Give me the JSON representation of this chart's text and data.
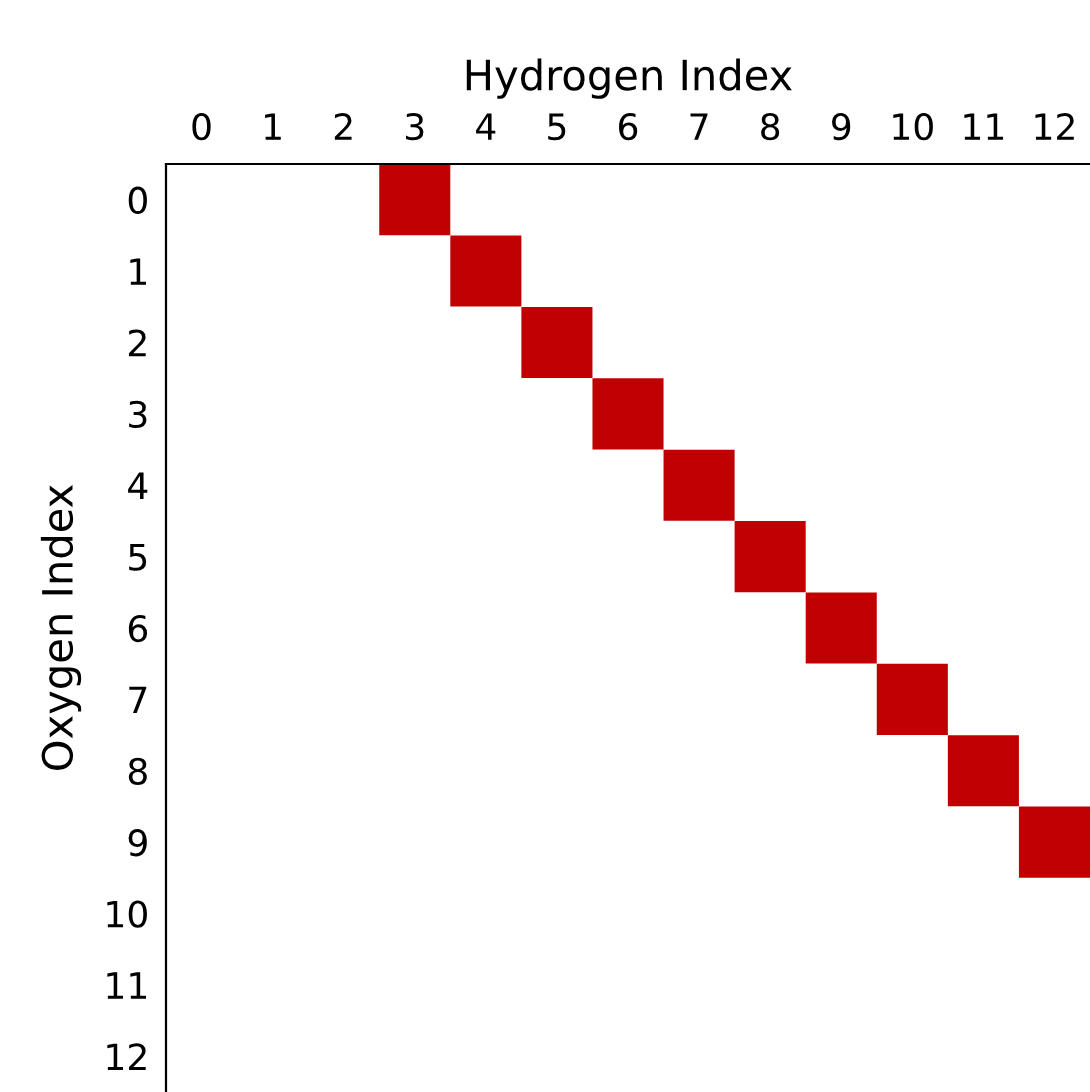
{
  "chart_data": {
    "type": "scatter",
    "xlabel": "Hydrogen Index",
    "ylabel": "Oxygen Index",
    "x": [
      3,
      4,
      5,
      6,
      7,
      8,
      9,
      10,
      11,
      12
    ],
    "series": [
      {
        "color": "#c00000",
        "values": [
          0,
          1,
          2,
          3,
          4,
          5,
          6,
          7,
          8,
          9
        ]
      }
    ],
    "marker": "square",
    "grid": false,
    "xlim": [
      -0.5,
      12.5
    ],
    "ylim": [
      12.5,
      -0.5
    ],
    "xticks": [
      0,
      1,
      2,
      3,
      4,
      5,
      6,
      7,
      8,
      9,
      10,
      11,
      12
    ],
    "yticks": [
      0,
      1,
      2,
      3,
      4,
      5,
      6,
      7,
      8,
      9,
      10,
      11,
      12
    ]
  }
}
